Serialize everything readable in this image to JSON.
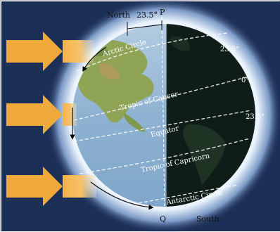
{
  "title": "",
  "labels": {
    "north": "North",
    "south": "South",
    "pole_p": "P",
    "pole_q": "Q",
    "tilt": "23.5°",
    "arctic_circle": "Arctic Circle",
    "tropic_of_cancer": "Tropic of Cancer",
    "equator": "Equator",
    "tropic_of_capricorn": "Tropic of Capricorn",
    "antarctic_circle": "Antarctic Circle",
    "lat_north": "23.5°",
    "lat_zero": "0°",
    "lat_south": "23.5°"
  },
  "icons": {
    "sun_rays": "arrow-right-icon"
  },
  "colors": {
    "space": "#1c2f57",
    "glow": "#dbe8f8",
    "ocean_day": "#8fb4d4",
    "night": "#0f1d19",
    "sun_ray": "#f0aa3c",
    "circle_line": "#ffffff"
  }
}
